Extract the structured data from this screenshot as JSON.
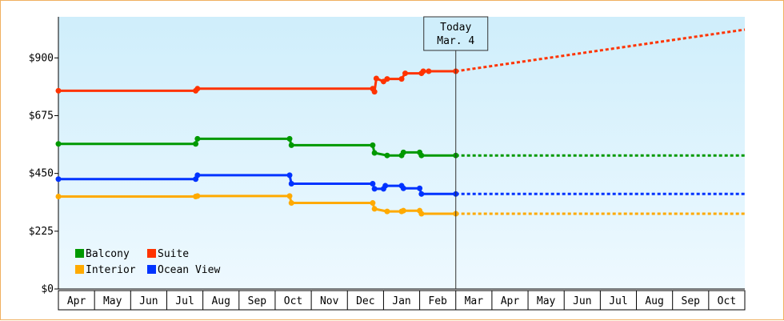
{
  "chart_data": {
    "type": "line",
    "title": "",
    "xlabel": "",
    "ylabel": "",
    "x_tick_labels": [
      "Apr",
      "May",
      "Jun",
      "Jul",
      "Aug",
      "Sep",
      "Oct",
      "Nov",
      "Dec",
      "Jan",
      "Feb",
      "Mar",
      "Apr",
      "May",
      "Jun",
      "Jul",
      "Aug",
      "Sep",
      "Oct"
    ],
    "y_ticks": [
      {
        "value": 0,
        "label": "$0"
      },
      {
        "value": 225,
        "label": "$225"
      },
      {
        "value": 450,
        "label": "$450"
      },
      {
        "value": 675,
        "label": "$675"
      },
      {
        "value": 900,
        "label": "$900"
      }
    ],
    "ylim": [
      0,
      1060
    ],
    "xlim": [
      0,
      19
    ],
    "today": {
      "x": 11.0,
      "line1": "Today",
      "line2": "Mar. 4"
    },
    "grid": false,
    "legend_position": "bottom-left",
    "background_gradient": [
      "#cfeefb",
      "#eef9ff"
    ],
    "series": [
      {
        "name": "Suite",
        "color": "#ff3300",
        "points": [
          [
            0,
            772
          ],
          [
            3.8,
            772
          ],
          [
            3.85,
            780
          ],
          [
            8.7,
            780
          ],
          [
            8.75,
            768
          ],
          [
            8.8,
            820
          ],
          [
            9.0,
            808
          ],
          [
            9.1,
            818
          ],
          [
            9.5,
            818
          ],
          [
            9.6,
            840
          ],
          [
            10.05,
            840
          ],
          [
            10.1,
            848
          ],
          [
            10.25,
            848
          ],
          [
            11.0,
            848
          ]
        ],
        "forecast": [
          [
            11.0,
            848
          ],
          [
            19.0,
            1010
          ]
        ]
      },
      {
        "name": "Balcony",
        "color": "#009900",
        "points": [
          [
            0,
            565
          ],
          [
            3.8,
            565
          ],
          [
            3.85,
            585
          ],
          [
            6.4,
            585
          ],
          [
            6.45,
            560
          ],
          [
            8.7,
            560
          ],
          [
            8.75,
            530
          ],
          [
            9.1,
            520
          ],
          [
            9.5,
            520
          ],
          [
            9.55,
            532
          ],
          [
            10.0,
            532
          ],
          [
            10.05,
            520
          ],
          [
            11.0,
            520
          ]
        ],
        "forecast": [
          [
            11.0,
            520
          ],
          [
            19.0,
            520
          ]
        ]
      },
      {
        "name": "Ocean View",
        "color": "#0033ff",
        "points": [
          [
            0,
            428
          ],
          [
            3.8,
            428
          ],
          [
            3.85,
            443
          ],
          [
            6.4,
            443
          ],
          [
            6.45,
            410
          ],
          [
            8.7,
            410
          ],
          [
            8.75,
            390
          ],
          [
            9.0,
            390
          ],
          [
            9.05,
            402
          ],
          [
            9.5,
            402
          ],
          [
            9.55,
            392
          ],
          [
            10.0,
            392
          ],
          [
            10.05,
            370
          ],
          [
            11.0,
            370
          ]
        ],
        "forecast": [
          [
            11.0,
            370
          ],
          [
            19.0,
            370
          ]
        ]
      },
      {
        "name": "Interior",
        "color": "#ffaa00",
        "points": [
          [
            0,
            360
          ],
          [
            3.8,
            360
          ],
          [
            3.85,
            362
          ],
          [
            6.4,
            362
          ],
          [
            6.45,
            335
          ],
          [
            8.7,
            335
          ],
          [
            8.75,
            312
          ],
          [
            9.1,
            302
          ],
          [
            9.5,
            302
          ],
          [
            9.55,
            305
          ],
          [
            10.0,
            305
          ],
          [
            10.05,
            293
          ],
          [
            11.0,
            293
          ]
        ],
        "forecast": [
          [
            11.0,
            293
          ],
          [
            19.0,
            293
          ]
        ]
      }
    ],
    "legend": [
      {
        "label": "Balcony",
        "color": "#009900"
      },
      {
        "label": "Suite",
        "color": "#ff3300"
      },
      {
        "label": "Interior",
        "color": "#ffaa00"
      },
      {
        "label": "Ocean View",
        "color": "#0033ff"
      }
    ]
  }
}
